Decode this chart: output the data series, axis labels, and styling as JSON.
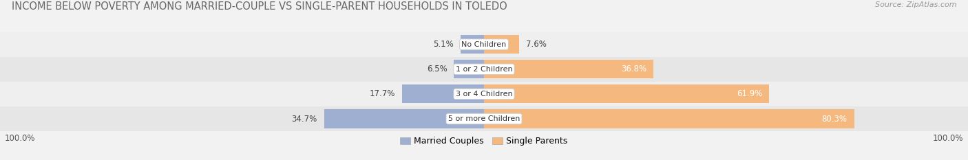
{
  "title": "INCOME BELOW POVERTY AMONG MARRIED-COUPLE VS SINGLE-PARENT HOUSEHOLDS IN TOLEDO",
  "source": "Source: ZipAtlas.com",
  "categories": [
    "No Children",
    "1 or 2 Children",
    "3 or 4 Children",
    "5 or more Children"
  ],
  "married_values": [
    5.1,
    6.5,
    17.7,
    34.7
  ],
  "single_values": [
    7.6,
    36.8,
    61.9,
    80.3
  ],
  "married_color": "#9fafd1",
  "single_color": "#f5b97f",
  "married_label": "Married Couples",
  "single_label": "Single Parents",
  "axis_label_left": "100.0%",
  "axis_label_right": "100.0%",
  "background_color": "#f2f2f2",
  "row_colors": [
    "#efefef",
    "#e6e6e6"
  ],
  "title_fontsize": 10.5,
  "source_fontsize": 8,
  "value_fontsize": 8.5,
  "cat_fontsize": 8,
  "legend_fontsize": 9
}
